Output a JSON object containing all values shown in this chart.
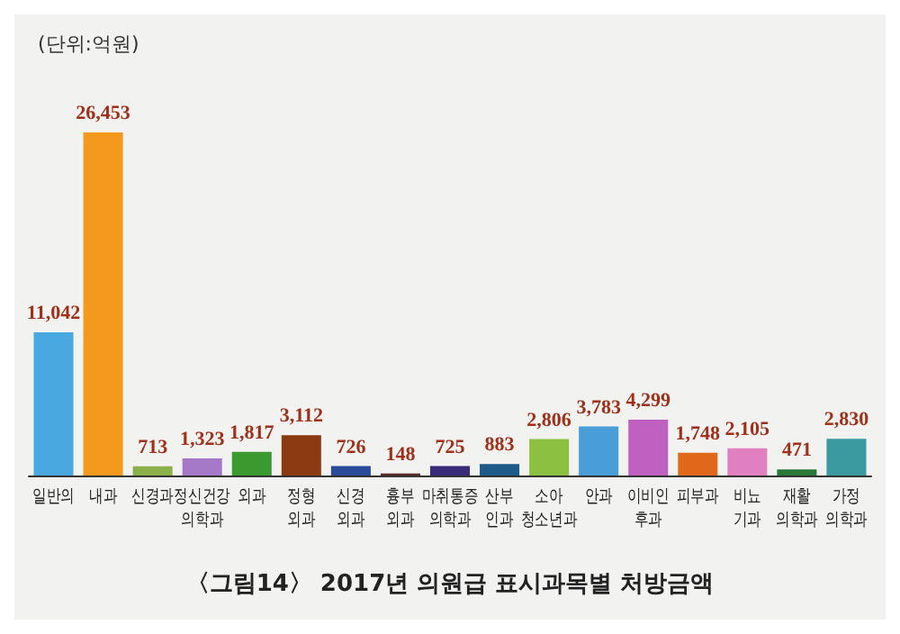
{
  "chart_data": {
    "type": "bar",
    "title": "〈그림14〉 2017년 의원급 표시과목별 처방금액",
    "subtitle": "(단위:억원)",
    "categories": [
      "일반의",
      "내과",
      "신경과",
      "정신건강\n의학과",
      "외과",
      "정형\n외과",
      "신경\n외과",
      "흉부\n외과",
      "마취통증\n의학과",
      "산부\n인과",
      "소아\n청소년과",
      "안과",
      "이비인\n후과",
      "피부과",
      "비뇨\n기과",
      "재활\n의학과",
      "가정\n의학과"
    ],
    "values": [
      11042,
      26453,
      713,
      1323,
      1817,
      3112,
      726,
      148,
      725,
      883,
      2806,
      3783,
      4299,
      1748,
      2105,
      471,
      2830
    ],
    "value_labels": [
      "11,042",
      "26,453",
      "713",
      "1,323",
      "1,817",
      "3,112",
      "726",
      "148",
      "725",
      "883",
      "2,806",
      "3,783",
      "4,299",
      "1,748",
      "2,105",
      "471",
      "2,830"
    ],
    "colors": [
      "#4aa8e0",
      "#f39a1e",
      "#8cb04a",
      "#a678c8",
      "#3a9a30",
      "#8b3a12",
      "#2a4a9a",
      "#5a2a2a",
      "#3a2a7a",
      "#1e5a8a",
      "#8cc040",
      "#4a9ed8",
      "#c060c0",
      "#e0681a",
      "#e080c0",
      "#2a7a3a",
      "#3a9aa0"
    ],
    "grid": false
  }
}
